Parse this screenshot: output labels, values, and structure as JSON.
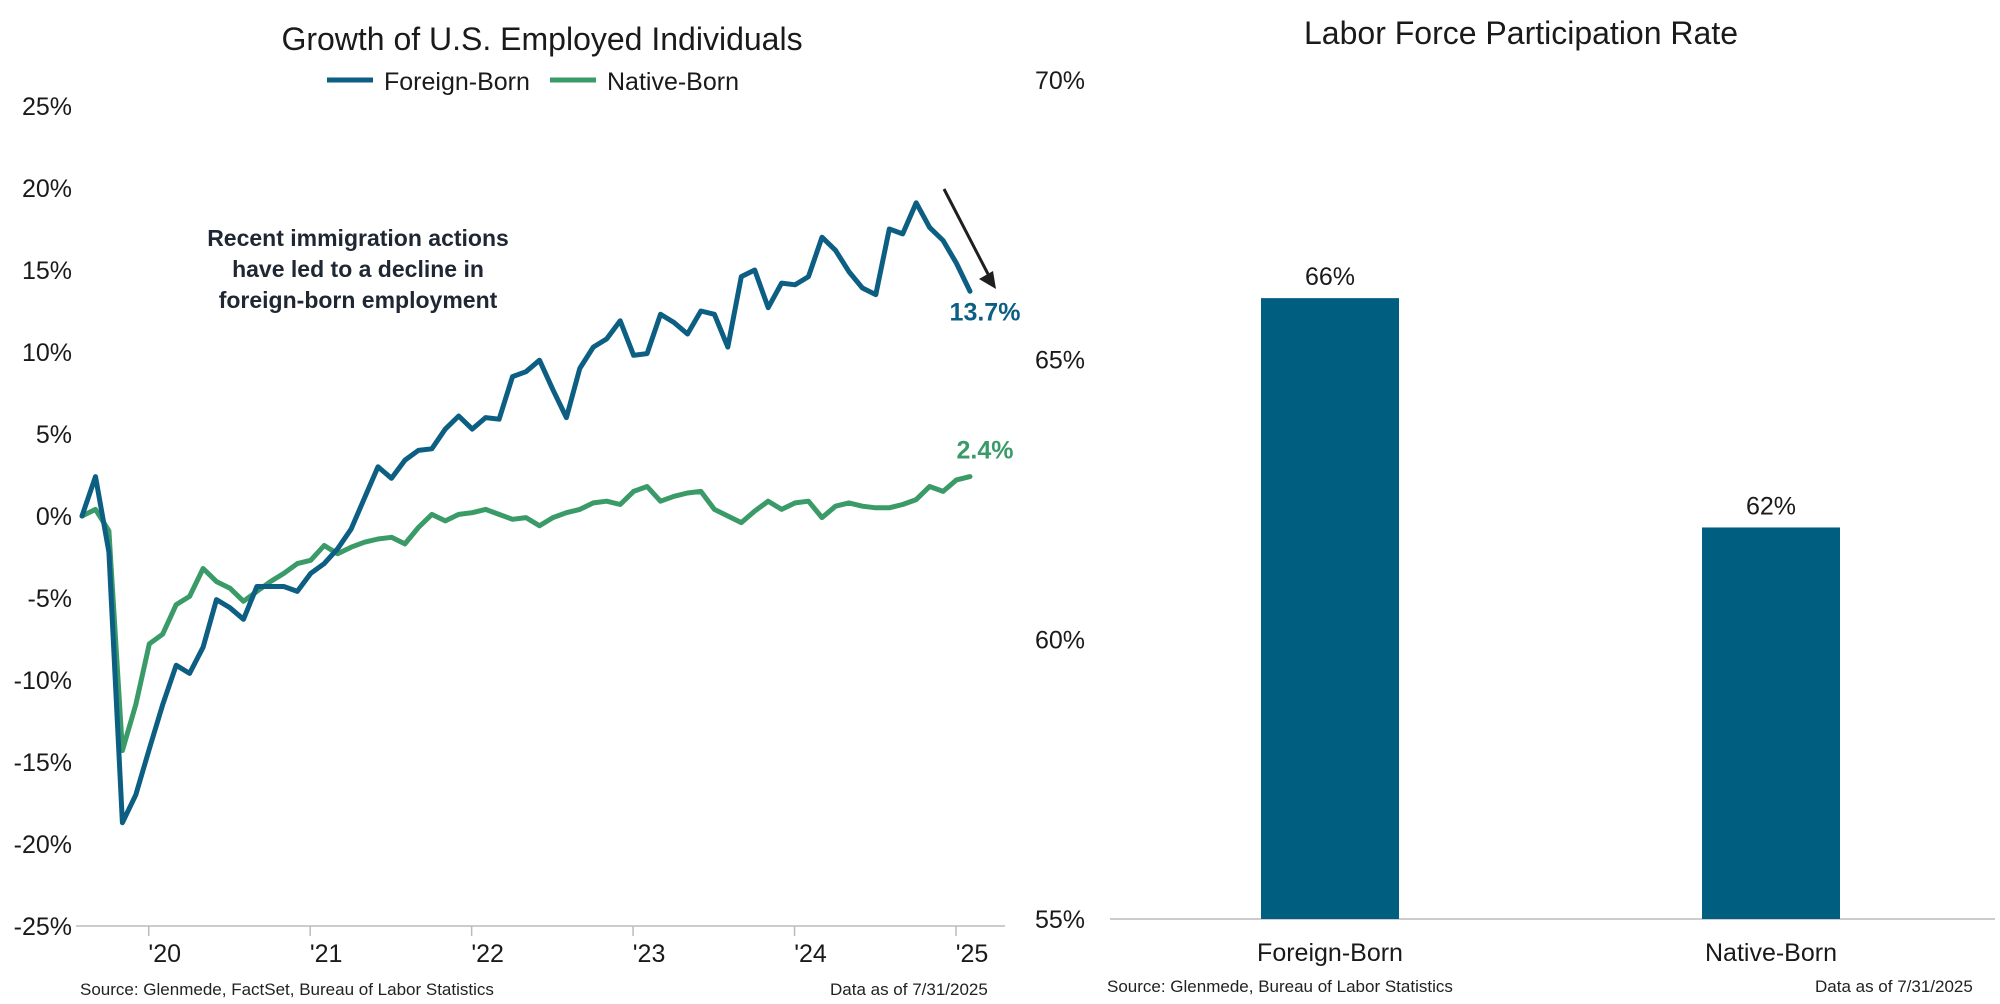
{
  "chart_data": [
    {
      "type": "line",
      "title": "Growth of U.S. Employed Individuals",
      "xlabel": "",
      "ylabel": "",
      "ylim": [
        -25,
        25
      ],
      "y_ticks": [
        "25%",
        "20%",
        "15%",
        "10%",
        "5%",
        "0%",
        "-5%",
        "-10%",
        "-15%",
        "-20%",
        "-25%"
      ],
      "x_ticks": [
        "'20",
        "'21",
        "'22",
        "'23",
        "'24",
        "'25"
      ],
      "legend": {
        "position": "top-center"
      },
      "annotation": {
        "lines": [
          "Recent immigration actions",
          "have led to a decline in",
          "foreign-born employment"
        ],
        "arrow": "pointing down toward the latest foreign-born value"
      },
      "series": [
        {
          "name": "Foreign-Born",
          "color": "#0c5e82",
          "end_label": "13.7%",
          "values": [
            0.0,
            2.4,
            -2.2,
            -18.7,
            -17.0,
            -14.2,
            -11.5,
            -9.1,
            -9.6,
            -8.0,
            -5.1,
            -5.6,
            -6.3,
            -4.3,
            -4.3,
            -4.3,
            -4.6,
            -3.5,
            -2.9,
            -2.0,
            -0.8,
            1.1,
            3.0,
            2.3,
            3.4,
            4.0,
            4.1,
            5.3,
            6.1,
            5.3,
            6.0,
            5.9,
            8.5,
            8.8,
            9.5,
            7.7,
            6.0,
            9.0,
            10.3,
            10.8,
            11.9,
            9.8,
            9.9,
            12.3,
            11.8,
            11.1,
            12.5,
            12.3,
            10.3,
            14.6,
            15.0,
            12.7,
            14.2,
            14.1,
            14.6,
            17.0,
            16.2,
            14.9,
            13.9,
            13.5,
            17.5,
            17.2,
            19.1,
            17.6,
            16.8,
            15.4,
            13.7
          ]
        },
        {
          "name": "Native-Born",
          "color": "#3a9a68",
          "end_label": "2.4%",
          "values": [
            0.0,
            0.4,
            -0.9,
            -14.3,
            -11.5,
            -7.8,
            -7.2,
            -5.4,
            -4.9,
            -3.2,
            -4.0,
            -4.4,
            -5.2,
            -4.6,
            -4.0,
            -3.5,
            -2.9,
            -2.7,
            -1.8,
            -2.3,
            -1.9,
            -1.6,
            -1.4,
            -1.3,
            -1.7,
            -0.7,
            0.1,
            -0.3,
            0.1,
            0.2,
            0.4,
            0.1,
            -0.2,
            -0.1,
            -0.6,
            -0.1,
            0.2,
            0.4,
            0.8,
            0.9,
            0.7,
            1.5,
            1.8,
            0.9,
            1.2,
            1.4,
            1.5,
            0.4,
            0.0,
            -0.4,
            0.3,
            0.9,
            0.4,
            0.8,
            0.9,
            -0.1,
            0.6,
            0.8,
            0.6,
            0.5,
            0.5,
            0.7,
            1.0,
            1.8,
            1.5,
            2.2,
            2.4
          ]
        }
      ]
    },
    {
      "type": "bar",
      "title": "Labor Force Participation Rate",
      "xlabel": "",
      "ylabel": "",
      "ylim": [
        55,
        70
      ],
      "y_ticks": [
        "70%",
        "65%",
        "60%",
        "55%"
      ],
      "categories": [
        "Foreign-Born",
        "Native-Born"
      ],
      "values": [
        66.1,
        62.0
      ],
      "data_labels": [
        "66%",
        "62%"
      ],
      "color": "#005e80"
    }
  ],
  "footers": {
    "left_source": "Source: Glenmede, FactSet, Bureau of Labor Statistics",
    "left_date": "Data as of 7/31/2025",
    "right_source": "Source: Glenmede, Bureau of Labor Statistics",
    "right_date": "Data as of 7/31/2025"
  }
}
